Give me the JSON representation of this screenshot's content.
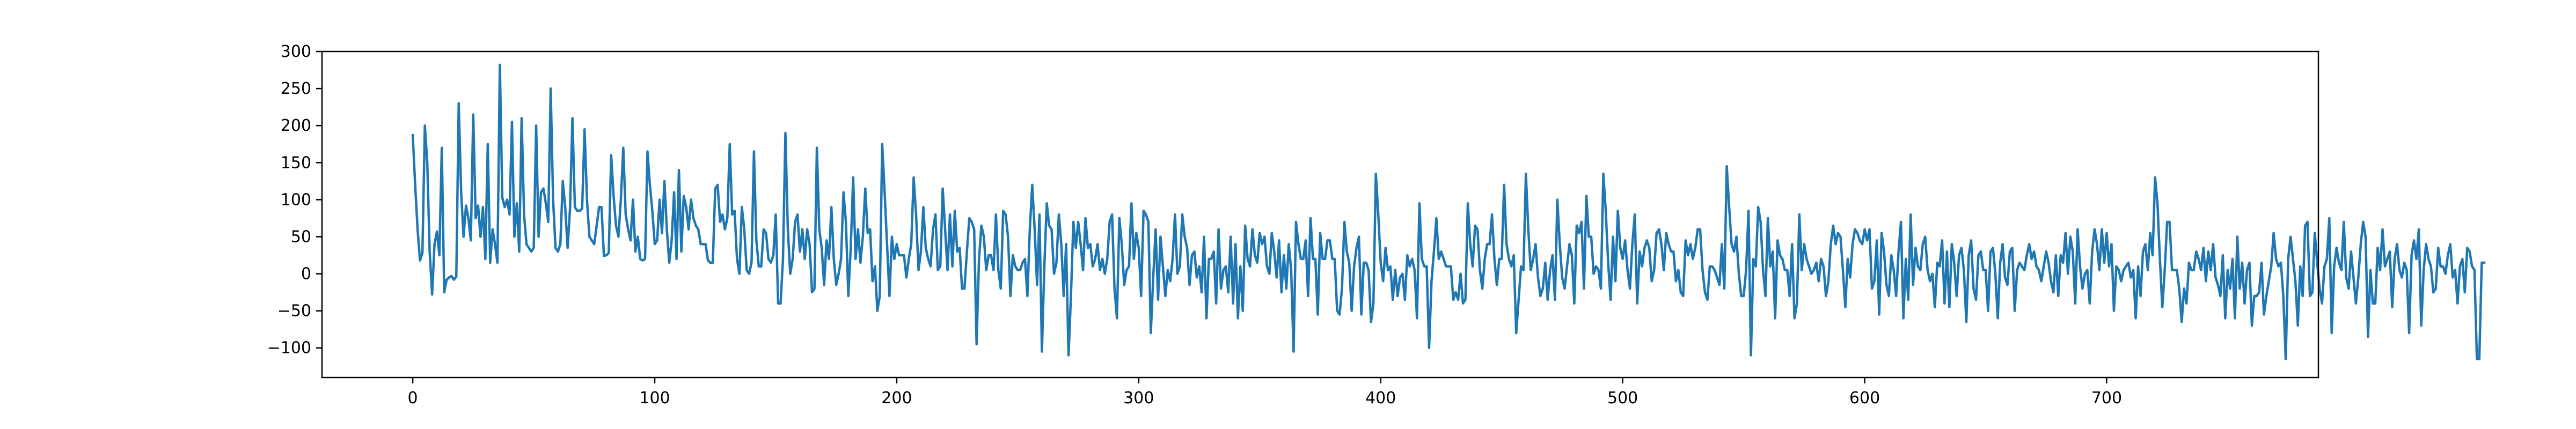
{
  "chart_data": {
    "type": "line",
    "title": "",
    "xlabel": "",
    "ylabel": "",
    "xlim": [
      -37.5,
      787.5
    ],
    "ylim": [
      -140,
      300
    ],
    "xticks": [
      0,
      100,
      200,
      300,
      400,
      500,
      600,
      700
    ],
    "yticks": [
      -100,
      -50,
      0,
      50,
      100,
      150,
      200,
      250,
      300
    ],
    "x_tick_labels": [
      "0",
      "100",
      "200",
      "300",
      "400",
      "500",
      "600",
      "700"
    ],
    "y_tick_labels": [
      "−100",
      "−50",
      "0",
      "50",
      "100",
      "150",
      "200",
      "250",
      "300"
    ],
    "grid": false,
    "legend": "none",
    "series": [
      {
        "color": "#1f77b4",
        "x_start": 0,
        "x_step": 1,
        "values": [
          187,
          120,
          60,
          18,
          28,
          200,
          150,
          30,
          -28,
          40,
          57,
          25,
          170,
          -25,
          -8,
          -5,
          -3,
          -8,
          -4,
          230,
          110,
          50,
          92,
          75,
          45,
          215,
          75,
          92,
          50,
          90,
          20,
          175,
          15,
          60,
          40,
          15,
          282,
          103,
          90,
          100,
          80,
          205,
          50,
          95,
          30,
          210,
          80,
          40,
          35,
          30,
          35,
          200,
          50,
          110,
          115,
          95,
          70,
          250,
          100,
          35,
          30,
          40,
          125,
          90,
          35,
          88,
          210,
          90,
          85,
          85,
          88,
          195,
          100,
          50,
          45,
          40,
          65,
          90,
          90,
          24,
          25,
          28,
          160,
          105,
          65,
          50,
          100,
          170,
          80,
          60,
          45,
          100,
          30,
          50,
          20,
          18,
          20,
          165,
          120,
          85,
          40,
          45,
          100,
          55,
          125,
          60,
          15,
          45,
          110,
          20,
          140,
          30,
          105,
          90,
          60,
          100,
          75,
          65,
          60,
          40,
          40,
          40,
          18,
          15,
          15,
          115,
          120,
          70,
          80,
          60,
          75,
          175,
          80,
          85,
          20,
          0,
          90,
          60,
          5,
          0,
          15,
          165,
          45,
          10,
          10,
          60,
          55,
          20,
          15,
          25,
          80,
          -40,
          -40,
          20,
          190,
          60,
          0,
          20,
          70,
          80,
          30,
          60,
          20,
          60,
          40,
          -25,
          -20,
          170,
          60,
          35,
          -15,
          45,
          20,
          90,
          20,
          -15,
          0,
          20,
          110,
          70,
          -30,
          35,
          130,
          20,
          60,
          15,
          50,
          115,
          55,
          60,
          -10,
          10,
          -50,
          -30,
          175,
          110,
          40,
          -30,
          50,
          20,
          40,
          25,
          25,
          25,
          -5,
          20,
          40,
          130,
          80,
          5,
          30,
          90,
          35,
          20,
          10,
          60,
          80,
          5,
          10,
          115,
          60,
          5,
          80,
          10,
          85,
          30,
          35,
          -20,
          -20,
          30,
          75,
          70,
          60,
          -95,
          20,
          65,
          50,
          5,
          25,
          25,
          5,
          80,
          5,
          -20,
          85,
          80,
          50,
          -30,
          25,
          10,
          5,
          5,
          15,
          20,
          -30,
          60,
          120,
          60,
          -15,
          80,
          -105,
          10,
          95,
          65,
          60,
          0,
          15,
          80,
          40,
          -30,
          40,
          -110,
          -30,
          70,
          35,
          70,
          40,
          5,
          75,
          35,
          40,
          10,
          20,
          40,
          5,
          20,
          0,
          20,
          70,
          80,
          -20,
          -60,
          75,
          40,
          -15,
          5,
          10,
          95,
          20,
          55,
          35,
          -30,
          85,
          80,
          70,
          -80,
          -5,
          60,
          -35,
          50,
          10,
          -30,
          5,
          -10,
          20,
          80,
          0,
          10,
          80,
          50,
          35,
          -15,
          25,
          30,
          -5,
          10,
          -25,
          50,
          -60,
          20,
          20,
          30,
          -40,
          60,
          -20,
          5,
          10,
          -25,
          50,
          -40,
          40,
          -60,
          10,
          -50,
          65,
          20,
          10,
          60,
          25,
          15,
          55,
          40,
          50,
          10,
          0,
          55,
          30,
          -5,
          45,
          -25,
          25,
          -20,
          40,
          5,
          -105,
          70,
          40,
          20,
          20,
          45,
          -30,
          75,
          20,
          20,
          -55,
          55,
          20,
          20,
          45,
          45,
          20,
          20,
          -50,
          -55,
          -20,
          70,
          30,
          15,
          -50,
          10,
          35,
          50,
          -55,
          15,
          15,
          5,
          -65,
          -40,
          135,
          80,
          15,
          -10,
          35,
          5,
          10,
          -35,
          5,
          -30,
          -5,
          0,
          -35,
          25,
          10,
          20,
          5,
          -60,
          95,
          20,
          10,
          10,
          -100,
          -10,
          30,
          75,
          20,
          30,
          20,
          10,
          10,
          10,
          -35,
          -25,
          -35,
          0,
          -40,
          -35,
          95,
          40,
          10,
          65,
          60,
          5,
          -20,
          20,
          40,
          40,
          80,
          20,
          -15,
          20,
          20,
          120,
          40,
          20,
          10,
          25,
          -80,
          -35,
          10,
          5,
          135,
          60,
          5,
          20,
          40,
          -5,
          -30,
          -20,
          15,
          -35,
          5,
          25,
          -35,
          100,
          40,
          -5,
          -20,
          10,
          40,
          25,
          -40,
          65,
          55,
          70,
          -20,
          105,
          50,
          50,
          0,
          10,
          5,
          -20,
          135,
          85,
          15,
          -35,
          50,
          -10,
          85,
          35,
          20,
          45,
          5,
          -20,
          40,
          80,
          -40,
          30,
          10,
          35,
          45,
          35,
          -10,
          5,
          55,
          60,
          40,
          5,
          55,
          40,
          30,
          30,
          -10,
          5,
          -25,
          -30,
          45,
          25,
          40,
          20,
          35,
          60,
          60,
          5,
          -25,
          -35,
          10,
          10,
          5,
          -5,
          -15,
          40,
          -20,
          145,
          90,
          40,
          30,
          50,
          0,
          -30,
          -30,
          5,
          85,
          -110,
          20,
          10,
          90,
          70,
          5,
          -30,
          75,
          10,
          30,
          -60,
          45,
          25,
          20,
          5,
          5,
          -30,
          40,
          -60,
          -40,
          80,
          5,
          40,
          20,
          10,
          0,
          5,
          15,
          -10,
          20,
          10,
          -30,
          -10,
          40,
          65,
          40,
          55,
          50,
          5,
          -45,
          20,
          -5,
          40,
          60,
          55,
          45,
          40,
          60,
          45,
          60,
          -20,
          -10,
          45,
          -55,
          55,
          30,
          -15,
          -30,
          25,
          5,
          -30,
          30,
          70,
          -60,
          20,
          -35,
          80,
          -15,
          35,
          10,
          5,
          40,
          50,
          5,
          -10,
          0,
          -45,
          15,
          10,
          45,
          -40,
          30,
          -45,
          40,
          15,
          -30,
          25,
          35,
          5,
          -65,
          25,
          45,
          -20,
          -35,
          25,
          30,
          5,
          5,
          -50,
          30,
          35,
          0,
          -60,
          15,
          40,
          -5,
          -15,
          30,
          35,
          -50,
          5,
          15,
          10,
          5,
          25,
          40,
          20,
          30,
          10,
          5,
          -10,
          10,
          30,
          15,
          -10,
          -25,
          25,
          -30,
          25,
          15,
          55,
          0,
          50,
          30,
          -40,
          60,
          10,
          -20,
          0,
          5,
          -40,
          30,
          60,
          40,
          5,
          60,
          15,
          55,
          10,
          40,
          -50,
          10,
          5,
          -10,
          5,
          10,
          15,
          -5,
          5,
          -60,
          10,
          -30,
          30,
          40,
          5,
          55,
          25,
          130,
          95,
          20,
          -45,
          5,
          70,
          70,
          5,
          5,
          5,
          -20,
          -65,
          -20,
          -40,
          15,
          5,
          5,
          30,
          20,
          5,
          35,
          -10,
          30,
          5,
          40,
          -5,
          -15,
          -30,
          25,
          -60,
          5,
          -20,
          20,
          -60,
          50,
          -20,
          15,
          -40,
          5,
          15,
          -70,
          -30,
          -30,
          -25,
          15,
          -55,
          -30,
          -10,
          10,
          55,
          20,
          10,
          15,
          -30,
          -115,
          20,
          50,
          20,
          -10,
          -70,
          10,
          -30,
          65,
          70,
          -30,
          -25,
          55,
          15,
          -20,
          -40,
          10,
          20,
          75,
          -80,
          10,
          35,
          15,
          5,
          70,
          -5,
          -20,
          30,
          -5,
          -40,
          -5,
          40,
          70,
          50,
          -85,
          5,
          -40,
          -40,
          35,
          5,
          60,
          10,
          20,
          30,
          -45,
          20,
          40,
          5,
          -5,
          15,
          5,
          -80,
          25,
          45,
          20,
          60,
          -70,
          5,
          40,
          20,
          10,
          -25,
          -20,
          35,
          10,
          10,
          0,
          25,
          40,
          -5,
          5,
          -40,
          10,
          20,
          -25,
          35,
          30,
          10,
          5,
          -115,
          -115,
          15,
          15
        ]
      }
    ]
  }
}
